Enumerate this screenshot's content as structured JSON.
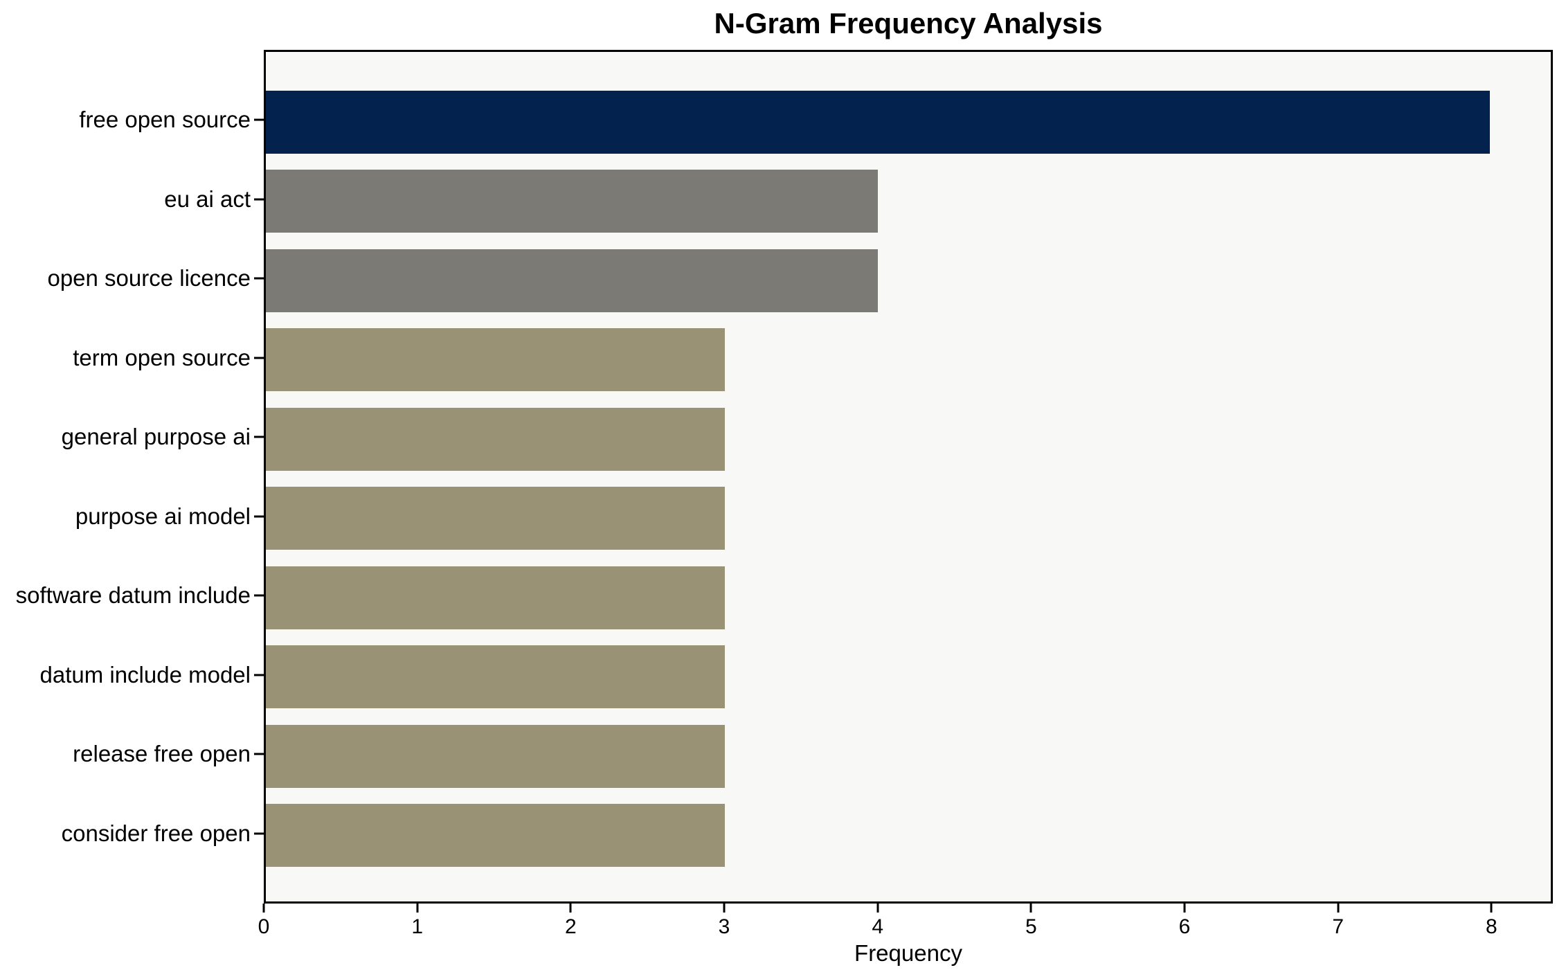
{
  "chart_data": {
    "type": "bar",
    "orientation": "horizontal",
    "title": "N-Gram Frequency Analysis",
    "xlabel": "Frequency",
    "ylabel": "",
    "categories": [
      "free open source",
      "eu ai act",
      "open source licence",
      "term open source",
      "general purpose ai",
      "purpose ai model",
      "software datum include",
      "datum include model",
      "release free open",
      "consider free open"
    ],
    "values": [
      8,
      4,
      4,
      3,
      3,
      3,
      3,
      3,
      3,
      3
    ],
    "bar_colors": [
      "#03224e",
      "#7b7a75",
      "#7b7a75",
      "#9a9274",
      "#9a9274",
      "#9a9274",
      "#9a9274",
      "#9a9274",
      "#9a9274",
      "#9a9274"
    ],
    "xlim": [
      0,
      8.4
    ],
    "xticks": [
      0,
      1,
      2,
      3,
      4,
      5,
      6,
      7,
      8
    ],
    "grid": false,
    "legend": "none",
    "plot_background": "#f8f8f7",
    "figure_background": "#ffffff",
    "spine_color": "#000000",
    "text_color": "#000000"
  }
}
